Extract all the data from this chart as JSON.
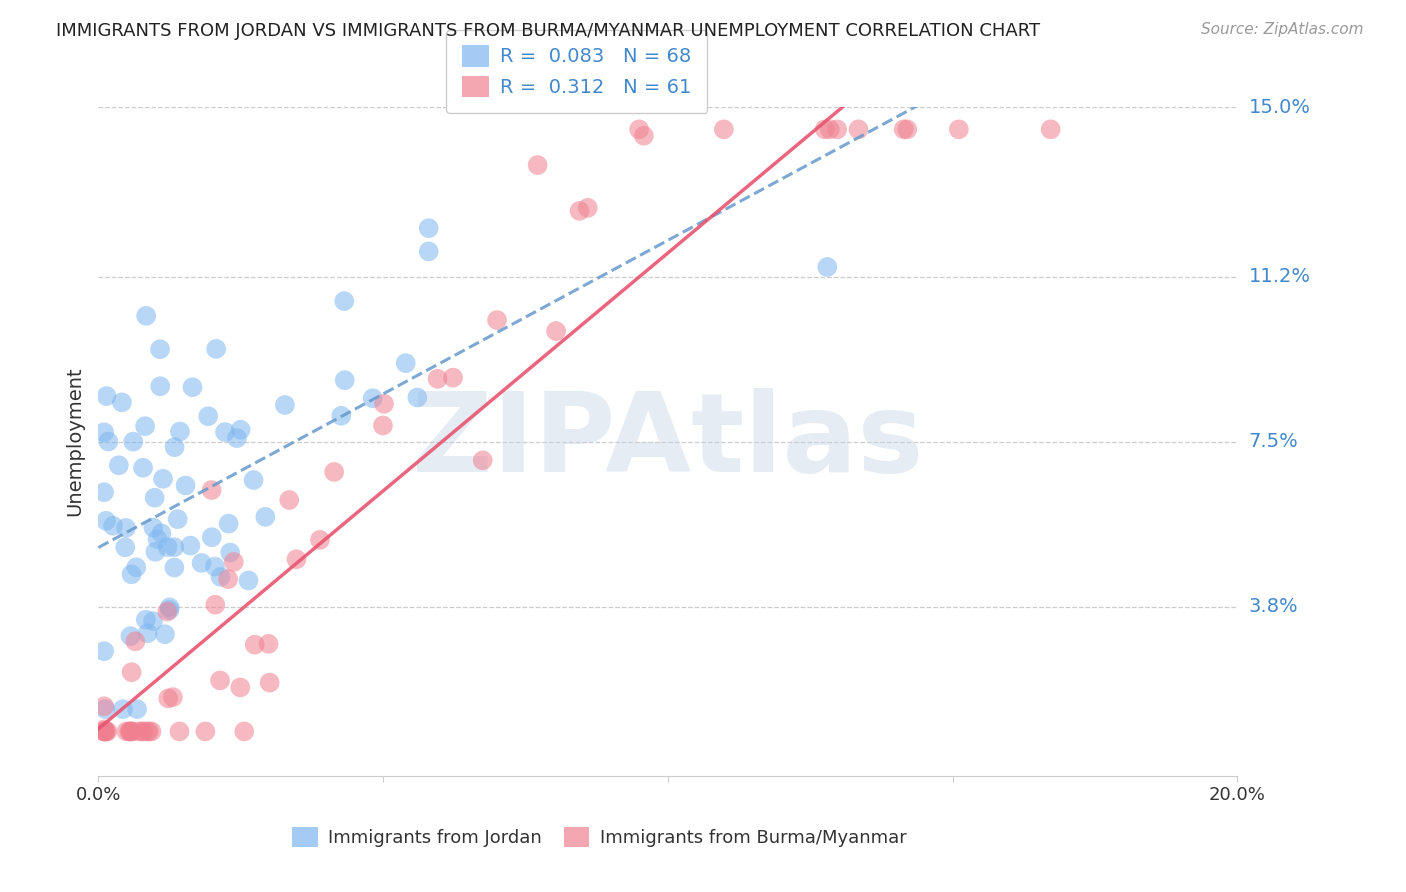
{
  "title": "IMMIGRANTS FROM JORDAN VS IMMIGRANTS FROM BURMA/MYANMAR UNEMPLOYMENT CORRELATION CHART",
  "source": "Source: ZipAtlas.com",
  "ylabel": "Unemployment",
  "xlim": [
    0.0,
    0.2
  ],
  "ylim": [
    0.0,
    0.15
  ],
  "yticks": [
    0.038,
    0.075,
    0.112,
    0.15
  ],
  "ytick_labels": [
    "3.8%",
    "7.5%",
    "11.2%",
    "15.0%"
  ],
  "jordan_R": 0.083,
  "jordan_N": 68,
  "burma_R": 0.312,
  "burma_N": 61,
  "jordan_color": "#7EB6F0",
  "burma_color": "#F08090",
  "jordan_line_color": "#6699CC",
  "burma_line_color": "#E85570",
  "watermark": "ZIPAtlas",
  "watermark_color": "#C8D5E8",
  "background_color": "#FFFFFF",
  "title_fontsize": 13,
  "source_color": "#999999",
  "axis_label_color": "#4488CC",
  "text_color": "#333333"
}
